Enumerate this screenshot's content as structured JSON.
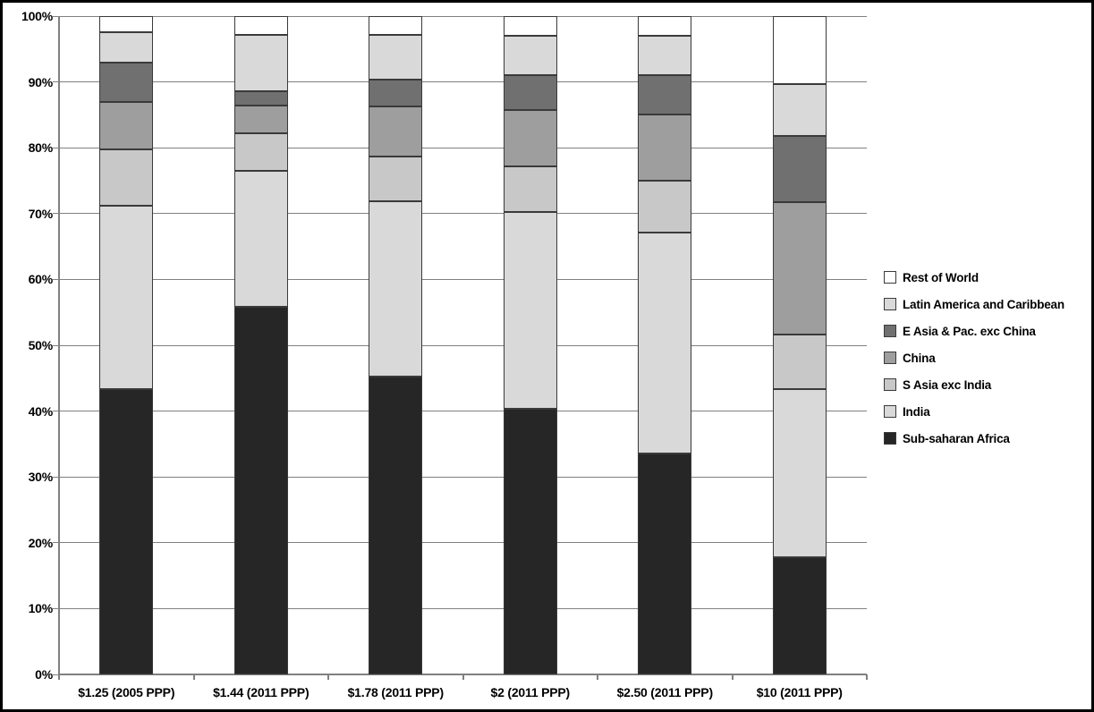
{
  "chart_data": {
    "type": "bar",
    "stacked": true,
    "stacked_mode": "percent",
    "title": "",
    "xlabel": "",
    "ylabel": "",
    "grid": true,
    "categories": [
      "$1.25 (2005 PPP)",
      "$1.44 (2011 PPP)",
      "$1.78 (2011 PPP)",
      "$2 (2011 PPP)",
      "$2.50 (2011 PPP)",
      "$10 (2011 PPP)"
    ],
    "series": [
      {
        "name": "Sub-saharan Africa",
        "color": "#262626",
        "values": [
          43.4,
          55.8,
          45.2,
          40.3,
          33.5,
          17.8
        ]
      },
      {
        "name": "India",
        "color": "#d9d9d9",
        "values": [
          27.8,
          20.7,
          26.7,
          30.0,
          33.6,
          25.6
        ]
      },
      {
        "name": "S Asia exc India",
        "color": "#c8c8c8",
        "values": [
          8.6,
          5.7,
          6.8,
          6.9,
          7.9,
          8.2
        ]
      },
      {
        "name": "China",
        "color": "#9e9e9e",
        "values": [
          7.2,
          4.2,
          7.6,
          8.6,
          10.0,
          20.2
        ]
      },
      {
        "name": "E Asia & Pac. exc China",
        "color": "#707070",
        "values": [
          6.0,
          2.2,
          4.1,
          5.2,
          6.1,
          10.0
        ]
      },
      {
        "name": "Latin America and Caribbean",
        "color": "#d9d9d9",
        "values": [
          4.6,
          8.6,
          6.7,
          6.0,
          5.9,
          7.9
        ]
      },
      {
        "name": "Rest of World",
        "color": "#ffffff",
        "values": [
          2.4,
          2.8,
          2.9,
          3.0,
          3.0,
          10.3
        ]
      }
    ],
    "y_axis": {
      "min": 0,
      "max": 100,
      "tick_step": 10,
      "tick_labels": [
        "0%",
        "10%",
        "20%",
        "30%",
        "40%",
        "50%",
        "60%",
        "70%",
        "80%",
        "90%",
        "100%"
      ]
    },
    "legend": {
      "position": "right",
      "entries": [
        {
          "label": "Rest of World",
          "color": "#ffffff"
        },
        {
          "label": "Latin America and Caribbean",
          "color": "#d9d9d9"
        },
        {
          "label": "E Asia & Pac. exc China",
          "color": "#707070"
        },
        {
          "label": "China",
          "color": "#9e9e9e"
        },
        {
          "label": "S Asia exc India",
          "color": "#c8c8c8"
        },
        {
          "label": "India",
          "color": "#d9d9d9"
        },
        {
          "label": "Sub-saharan Africa",
          "color": "#262626"
        }
      ]
    }
  },
  "styles": {
    "gridline_color": "#808080",
    "axis_color": "#808080",
    "segment_border_color": "#3a3a3a",
    "outer_border_color": "#000000",
    "background": "#ffffff"
  }
}
